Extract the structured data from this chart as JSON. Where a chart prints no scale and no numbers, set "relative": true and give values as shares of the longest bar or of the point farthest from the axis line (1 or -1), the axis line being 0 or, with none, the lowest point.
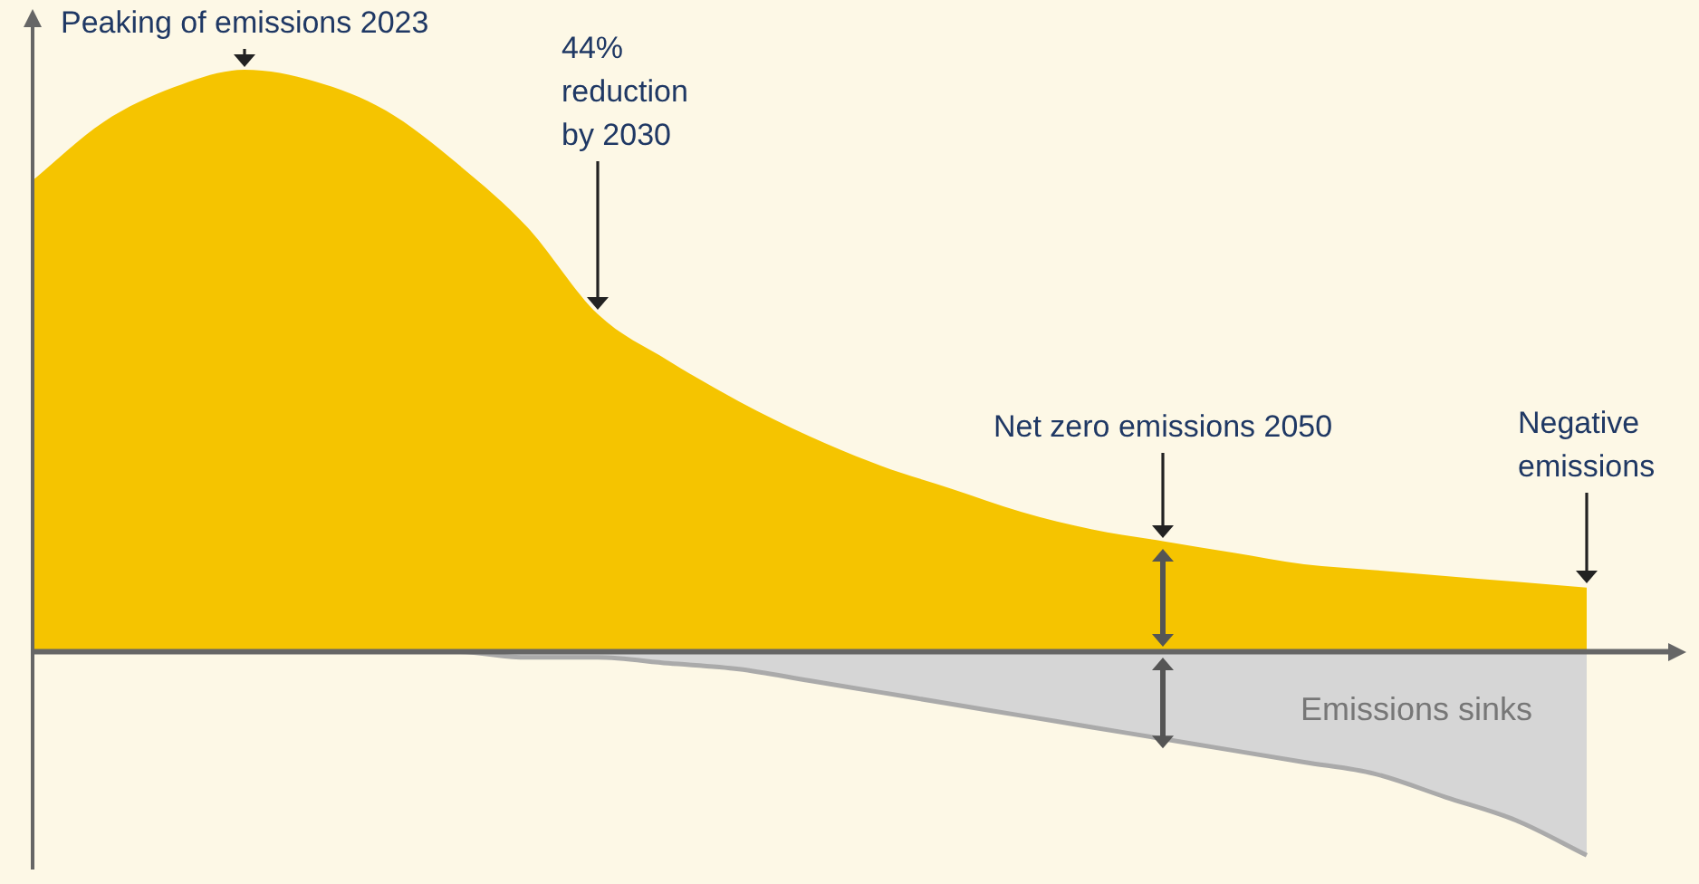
{
  "chart_data": {
    "type": "area",
    "relative": true,
    "categories": [
      null,
      null,
      null,
      null,
      null,
      null,
      null,
      null,
      null,
      null,
      null,
      null,
      null,
      null,
      null,
      null,
      null,
      null,
      null,
      null,
      null,
      null,
      null
    ],
    "series": [
      {
        "color": "#f5c400",
        "values": [
          0.81,
          0.91,
          0.97,
          1.0,
          0.98,
          0.93,
          0.84,
          0.73,
          0.58,
          0.5,
          0.43,
          0.37,
          0.32,
          0.28,
          0.24,
          0.21,
          0.19,
          0.17,
          0.15,
          0.14,
          0.13,
          0.12,
          0.11
        ]
      },
      {
        "name": "Emissions sinks",
        "color": "#d6d6d6",
        "values": [
          0,
          0,
          0,
          0,
          0,
          0,
          0,
          -0.01,
          -0.01,
          -0.02,
          -0.03,
          -0.05,
          -0.07,
          -0.09,
          -0.11,
          -0.13,
          -0.15,
          -0.17,
          -0.19,
          -0.21,
          -0.25,
          -0.29,
          -0.35
        ]
      }
    ],
    "annotations": [
      "Peaking of emissions 2023",
      "44%\nreduction\nby 2030",
      "Net zero emissions 2050",
      "Negative\nemissions"
    ],
    "legend": false,
    "tick_labels": false
  }
}
